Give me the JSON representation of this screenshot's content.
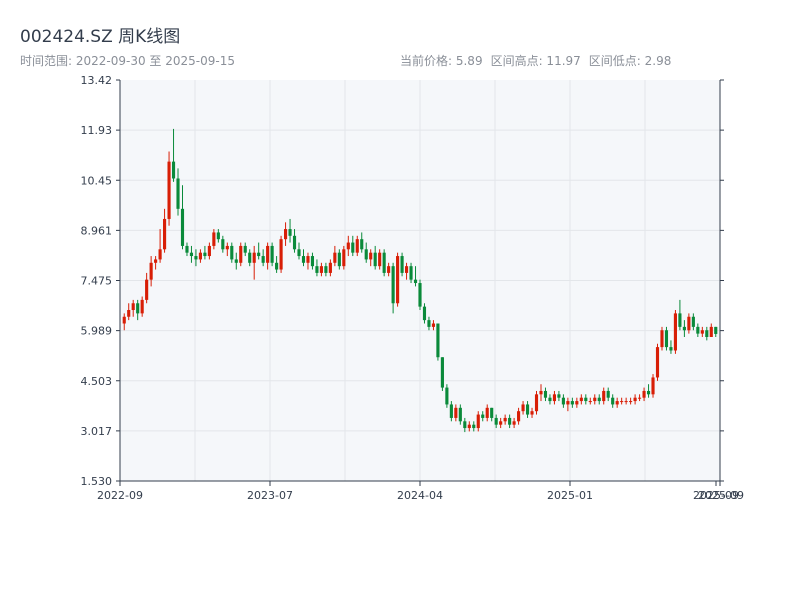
{
  "header": {
    "title": "002424.SZ 周K线图",
    "range_label": "时间范围: 2022-09-30 至 2025-09-15",
    "price_label": "当前价格: 5.89",
    "high_label": "区间高点: 11.97",
    "low_label": "区间低点: 2.98"
  },
  "colors": {
    "up": "#d81e06",
    "down": "#0a8a3a",
    "plot_bg": "#f5f7fa",
    "grid": "#e3e6ea",
    "axis": "#333d4c"
  },
  "chart_data": {
    "type": "candlestick",
    "interval": "weekly",
    "title": "002424.SZ 周K线图",
    "date_range": [
      "2022-09-30",
      "2025-09-15"
    ],
    "current_price": 5.89,
    "range_high": 11.97,
    "range_low": 2.98,
    "ylim": [
      1.53,
      13.42
    ],
    "y_ticks": [
      "1.530",
      "3.017",
      "4.503",
      "5.989",
      "7.475",
      "8.961",
      "10.45",
      "11.93",
      "13.42"
    ],
    "x_ticks": [
      "2022-09",
      "2023-07",
      "2024-04",
      "2025-01",
      "2025-09"
    ],
    "grid": true,
    "candles": [
      {
        "o": 6.2,
        "h": 6.5,
        "l": 6.0,
        "c": 6.4
      },
      {
        "o": 6.4,
        "h": 6.8,
        "l": 6.3,
        "c": 6.6
      },
      {
        "o": 6.6,
        "h": 6.9,
        "l": 6.4,
        "c": 6.8
      },
      {
        "o": 6.8,
        "h": 6.9,
        "l": 6.3,
        "c": 6.5
      },
      {
        "o": 6.5,
        "h": 7.0,
        "l": 6.4,
        "c": 6.9
      },
      {
        "o": 6.9,
        "h": 7.7,
        "l": 6.8,
        "c": 7.5
      },
      {
        "o": 7.5,
        "h": 8.2,
        "l": 7.3,
        "c": 8.0
      },
      {
        "o": 8.0,
        "h": 8.2,
        "l": 7.8,
        "c": 8.1
      },
      {
        "o": 8.1,
        "h": 9.0,
        "l": 8.0,
        "c": 8.4
      },
      {
        "o": 8.4,
        "h": 9.6,
        "l": 8.3,
        "c": 9.3
      },
      {
        "o": 9.3,
        "h": 11.3,
        "l": 9.1,
        "c": 11.0
      },
      {
        "o": 11.0,
        "h": 11.97,
        "l": 10.4,
        "c": 10.5
      },
      {
        "o": 10.5,
        "h": 10.8,
        "l": 9.4,
        "c": 9.6
      },
      {
        "o": 9.6,
        "h": 10.3,
        "l": 8.4,
        "c": 8.5
      },
      {
        "o": 8.5,
        "h": 8.6,
        "l": 8.2,
        "c": 8.3
      },
      {
        "o": 8.3,
        "h": 8.5,
        "l": 8.0,
        "c": 8.2
      },
      {
        "o": 8.2,
        "h": 8.4,
        "l": 7.9,
        "c": 8.1
      },
      {
        "o": 8.1,
        "h": 8.4,
        "l": 8.0,
        "c": 8.3
      },
      {
        "o": 8.3,
        "h": 8.5,
        "l": 8.1,
        "c": 8.2
      },
      {
        "o": 8.2,
        "h": 8.6,
        "l": 8.1,
        "c": 8.5
      },
      {
        "o": 8.5,
        "h": 9.0,
        "l": 8.4,
        "c": 8.9
      },
      {
        "o": 8.9,
        "h": 9.0,
        "l": 8.6,
        "c": 8.7
      },
      {
        "o": 8.7,
        "h": 8.8,
        "l": 8.3,
        "c": 8.4
      },
      {
        "o": 8.4,
        "h": 8.6,
        "l": 8.2,
        "c": 8.5
      },
      {
        "o": 8.5,
        "h": 8.6,
        "l": 8.0,
        "c": 8.1
      },
      {
        "o": 8.1,
        "h": 8.3,
        "l": 7.8,
        "c": 8.0
      },
      {
        "o": 8.0,
        "h": 8.6,
        "l": 7.9,
        "c": 8.5
      },
      {
        "o": 8.5,
        "h": 8.6,
        "l": 8.2,
        "c": 8.3
      },
      {
        "o": 8.3,
        "h": 8.4,
        "l": 7.9,
        "c": 8.0
      },
      {
        "o": 8.0,
        "h": 8.5,
        "l": 7.5,
        "c": 8.3
      },
      {
        "o": 8.3,
        "h": 8.6,
        "l": 8.1,
        "c": 8.2
      },
      {
        "o": 8.2,
        "h": 8.4,
        "l": 7.9,
        "c": 8.0
      },
      {
        "o": 8.0,
        "h": 8.6,
        "l": 7.8,
        "c": 8.5
      },
      {
        "o": 8.5,
        "h": 8.6,
        "l": 7.9,
        "c": 8.0
      },
      {
        "o": 8.0,
        "h": 8.2,
        "l": 7.7,
        "c": 7.8
      },
      {
        "o": 7.8,
        "h": 8.8,
        "l": 7.7,
        "c": 8.7
      },
      {
        "o": 8.7,
        "h": 9.2,
        "l": 8.5,
        "c": 9.0
      },
      {
        "o": 9.0,
        "h": 9.3,
        "l": 8.6,
        "c": 8.8
      },
      {
        "o": 8.8,
        "h": 9.0,
        "l": 8.3,
        "c": 8.4
      },
      {
        "o": 8.4,
        "h": 8.6,
        "l": 8.1,
        "c": 8.2
      },
      {
        "o": 8.2,
        "h": 8.4,
        "l": 7.9,
        "c": 8.0
      },
      {
        "o": 8.0,
        "h": 8.3,
        "l": 7.8,
        "c": 8.2
      },
      {
        "o": 8.2,
        "h": 8.3,
        "l": 7.8,
        "c": 7.9
      },
      {
        "o": 7.9,
        "h": 8.1,
        "l": 7.6,
        "c": 7.7
      },
      {
        "o": 7.7,
        "h": 8.0,
        "l": 7.6,
        "c": 7.9
      },
      {
        "o": 7.9,
        "h": 8.0,
        "l": 7.6,
        "c": 7.7
      },
      {
        "o": 7.7,
        "h": 8.1,
        "l": 7.6,
        "c": 8.0
      },
      {
        "o": 8.0,
        "h": 8.5,
        "l": 7.9,
        "c": 8.3
      },
      {
        "o": 8.3,
        "h": 8.4,
        "l": 7.8,
        "c": 7.9
      },
      {
        "o": 7.9,
        "h": 8.5,
        "l": 7.8,
        "c": 8.4
      },
      {
        "o": 8.4,
        "h": 8.8,
        "l": 8.2,
        "c": 8.6
      },
      {
        "o": 8.6,
        "h": 8.8,
        "l": 8.2,
        "c": 8.3
      },
      {
        "o": 8.3,
        "h": 8.8,
        "l": 8.2,
        "c": 8.7
      },
      {
        "o": 8.7,
        "h": 8.9,
        "l": 8.3,
        "c": 8.4
      },
      {
        "o": 8.4,
        "h": 8.6,
        "l": 8.0,
        "c": 8.1
      },
      {
        "o": 8.1,
        "h": 8.4,
        "l": 7.9,
        "c": 8.3
      },
      {
        "o": 8.3,
        "h": 8.5,
        "l": 7.8,
        "c": 7.9
      },
      {
        "o": 7.9,
        "h": 8.4,
        "l": 7.8,
        "c": 8.3
      },
      {
        "o": 8.3,
        "h": 8.4,
        "l": 7.6,
        "c": 7.7
      },
      {
        "o": 7.7,
        "h": 8.0,
        "l": 7.6,
        "c": 7.9
      },
      {
        "o": 7.9,
        "h": 8.0,
        "l": 6.5,
        "c": 6.8
      },
      {
        "o": 6.8,
        "h": 8.3,
        "l": 6.7,
        "c": 8.2
      },
      {
        "o": 8.2,
        "h": 8.3,
        "l": 7.6,
        "c": 7.7
      },
      {
        "o": 7.7,
        "h": 8.0,
        "l": 7.5,
        "c": 7.9
      },
      {
        "o": 7.9,
        "h": 8.0,
        "l": 7.4,
        "c": 7.5
      },
      {
        "o": 7.5,
        "h": 7.9,
        "l": 7.3,
        "c": 7.4
      },
      {
        "o": 7.4,
        "h": 7.5,
        "l": 6.6,
        "c": 6.7
      },
      {
        "o": 6.7,
        "h": 6.8,
        "l": 6.2,
        "c": 6.3
      },
      {
        "o": 6.3,
        "h": 6.4,
        "l": 6.0,
        "c": 6.1
      },
      {
        "o": 6.1,
        "h": 6.3,
        "l": 6.0,
        "c": 6.2
      },
      {
        "o": 6.2,
        "h": 6.2,
        "l": 5.1,
        "c": 5.2
      },
      {
        "o": 5.2,
        "h": 5.2,
        "l": 4.2,
        "c": 4.3
      },
      {
        "o": 4.3,
        "h": 4.4,
        "l": 3.7,
        "c": 3.8
      },
      {
        "o": 3.8,
        "h": 3.9,
        "l": 3.3,
        "c": 3.4
      },
      {
        "o": 3.4,
        "h": 3.8,
        "l": 3.3,
        "c": 3.7
      },
      {
        "o": 3.7,
        "h": 3.8,
        "l": 3.2,
        "c": 3.3
      },
      {
        "o": 3.3,
        "h": 3.4,
        "l": 2.98,
        "c": 3.1
      },
      {
        "o": 3.1,
        "h": 3.3,
        "l": 3.0,
        "c": 3.2
      },
      {
        "o": 3.2,
        "h": 3.3,
        "l": 3.0,
        "c": 3.1
      },
      {
        "o": 3.1,
        "h": 3.6,
        "l": 3.0,
        "c": 3.5
      },
      {
        "o": 3.5,
        "h": 3.6,
        "l": 3.3,
        "c": 3.4
      },
      {
        "o": 3.4,
        "h": 3.8,
        "l": 3.3,
        "c": 3.7
      },
      {
        "o": 3.7,
        "h": 3.7,
        "l": 3.3,
        "c": 3.4
      },
      {
        "o": 3.4,
        "h": 3.5,
        "l": 3.1,
        "c": 3.2
      },
      {
        "o": 3.2,
        "h": 3.4,
        "l": 3.1,
        "c": 3.3
      },
      {
        "o": 3.3,
        "h": 3.5,
        "l": 3.2,
        "c": 3.4
      },
      {
        "o": 3.4,
        "h": 3.5,
        "l": 3.1,
        "c": 3.2
      },
      {
        "o": 3.2,
        "h": 3.4,
        "l": 3.1,
        "c": 3.3
      },
      {
        "o": 3.3,
        "h": 3.7,
        "l": 3.2,
        "c": 3.6
      },
      {
        "o": 3.6,
        "h": 3.9,
        "l": 3.5,
        "c": 3.8
      },
      {
        "o": 3.8,
        "h": 3.9,
        "l": 3.4,
        "c": 3.5
      },
      {
        "o": 3.5,
        "h": 3.7,
        "l": 3.4,
        "c": 3.6
      },
      {
        "o": 3.6,
        "h": 4.2,
        "l": 3.5,
        "c": 4.1
      },
      {
        "o": 4.1,
        "h": 4.4,
        "l": 3.9,
        "c": 4.2
      },
      {
        "o": 4.2,
        "h": 4.3,
        "l": 3.9,
        "c": 4.0
      },
      {
        "o": 4.0,
        "h": 4.1,
        "l": 3.8,
        "c": 3.9
      },
      {
        "o": 3.9,
        "h": 4.2,
        "l": 3.8,
        "c": 4.1
      },
      {
        "o": 4.1,
        "h": 4.2,
        "l": 3.9,
        "c": 4.0
      },
      {
        "o": 4.0,
        "h": 4.1,
        "l": 3.7,
        "c": 3.8
      },
      {
        "o": 3.8,
        "h": 4.0,
        "l": 3.6,
        "c": 3.9
      },
      {
        "o": 3.9,
        "h": 4.0,
        "l": 3.7,
        "c": 3.8
      },
      {
        "o": 3.8,
        "h": 4.0,
        "l": 3.7,
        "c": 3.9
      },
      {
        "o": 3.9,
        "h": 4.1,
        "l": 3.8,
        "c": 4.0
      },
      {
        "o": 4.0,
        "h": 4.1,
        "l": 3.8,
        "c": 3.9
      },
      {
        "o": 3.9,
        "h": 4.0,
        "l": 3.8,
        "c": 3.9
      },
      {
        "o": 3.9,
        "h": 4.1,
        "l": 3.8,
        "c": 4.0
      },
      {
        "o": 4.0,
        "h": 4.1,
        "l": 3.8,
        "c": 3.9
      },
      {
        "o": 3.9,
        "h": 4.3,
        "l": 3.8,
        "c": 4.2
      },
      {
        "o": 4.2,
        "h": 4.3,
        "l": 3.9,
        "c": 4.0
      },
      {
        "o": 4.0,
        "h": 4.1,
        "l": 3.7,
        "c": 3.8
      },
      {
        "o": 3.8,
        "h": 4.0,
        "l": 3.7,
        "c": 3.9
      },
      {
        "o": 3.9,
        "h": 4.0,
        "l": 3.8,
        "c": 3.9
      },
      {
        "o": 3.9,
        "h": 4.0,
        "l": 3.8,
        "c": 3.9
      },
      {
        "o": 3.9,
        "h": 4.0,
        "l": 3.8,
        "c": 3.9
      },
      {
        "o": 3.9,
        "h": 4.1,
        "l": 3.8,
        "c": 4.0
      },
      {
        "o": 4.0,
        "h": 4.1,
        "l": 3.9,
        "c": 4.0
      },
      {
        "o": 4.0,
        "h": 4.3,
        "l": 3.9,
        "c": 4.2
      },
      {
        "o": 4.2,
        "h": 4.4,
        "l": 4.0,
        "c": 4.1
      },
      {
        "o": 4.1,
        "h": 4.7,
        "l": 4.0,
        "c": 4.6
      },
      {
        "o": 4.6,
        "h": 5.6,
        "l": 4.5,
        "c": 5.5
      },
      {
        "o": 5.5,
        "h": 6.1,
        "l": 5.4,
        "c": 6.0
      },
      {
        "o": 6.0,
        "h": 6.1,
        "l": 5.4,
        "c": 5.5
      },
      {
        "o": 5.5,
        "h": 5.7,
        "l": 5.3,
        "c": 5.4
      },
      {
        "o": 5.4,
        "h": 6.6,
        "l": 5.3,
        "c": 6.5
      },
      {
        "o": 6.5,
        "h": 6.9,
        "l": 6.0,
        "c": 6.1
      },
      {
        "o": 6.1,
        "h": 6.3,
        "l": 5.8,
        "c": 6.0
      },
      {
        "o": 6.0,
        "h": 6.5,
        "l": 5.9,
        "c": 6.4
      },
      {
        "o": 6.4,
        "h": 6.5,
        "l": 6.0,
        "c": 6.1
      },
      {
        "o": 6.1,
        "h": 6.2,
        "l": 5.8,
        "c": 5.9
      },
      {
        "o": 5.9,
        "h": 6.1,
        "l": 5.8,
        "c": 6.0
      },
      {
        "o": 6.0,
        "h": 6.1,
        "l": 5.7,
        "c": 5.8
      },
      {
        "o": 5.8,
        "h": 6.2,
        "l": 5.8,
        "c": 6.1
      },
      {
        "o": 6.1,
        "h": 6.1,
        "l": 5.8,
        "c": 5.89
      }
    ]
  }
}
